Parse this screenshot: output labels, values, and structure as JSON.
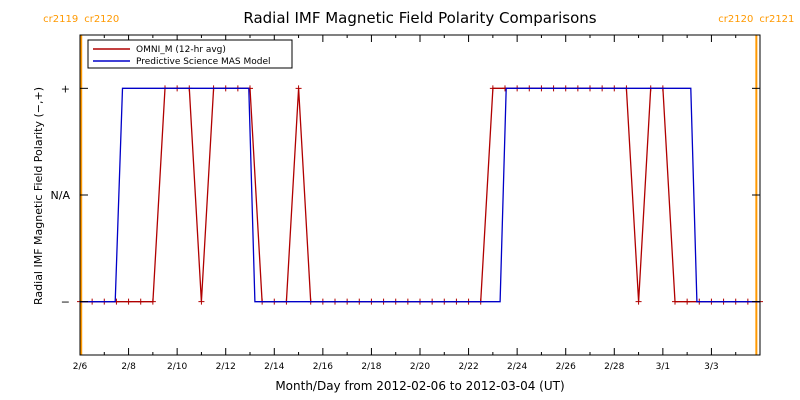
{
  "chart_data": {
    "type": "line",
    "title": "Radial IMF Magnetic Field Polarity Comparisons",
    "xlabel": "Month/Day from 2012-02-06 to 2012-03-04 (UT)",
    "ylabel": "Radial IMF Magnetic Field Polarity (−,+)",
    "x_start_date": "2012-02-06",
    "xlim": [
      0,
      28
    ],
    "ylim": [
      -1.5,
      1.5
    ],
    "x_ticks": [
      {
        "x": 0,
        "label": "2/6"
      },
      {
        "x": 2,
        "label": "2/8"
      },
      {
        "x": 4,
        "label": "2/10"
      },
      {
        "x": 6,
        "label": "2/12"
      },
      {
        "x": 8,
        "label": "2/14"
      },
      {
        "x": 10,
        "label": "2/16"
      },
      {
        "x": 12,
        "label": "2/18"
      },
      {
        "x": 14,
        "label": "2/20"
      },
      {
        "x": 16,
        "label": "2/22"
      },
      {
        "x": 18,
        "label": "2/24"
      },
      {
        "x": 20,
        "label": "2/26"
      },
      {
        "x": 22,
        "label": "2/28"
      },
      {
        "x": 24,
        "label": "3/1"
      },
      {
        "x": 26,
        "label": "3/3"
      }
    ],
    "y_ticks": [
      {
        "y": 1,
        "label": "+"
      },
      {
        "y": 0,
        "label": "N/A"
      },
      {
        "y": -1,
        "label": "−"
      }
    ],
    "carrington_markers": [
      {
        "x": 0.05,
        "labels": [
          "cr2119",
          "cr2120"
        ],
        "color": "#ff9900"
      },
      {
        "x": 27.85,
        "labels": [
          "cr2120",
          "cr2121"
        ],
        "color": "#ff9900"
      }
    ],
    "legend_position": "top-left",
    "series": [
      {
        "name": "OMNI_M (12-hr avg)",
        "color": "#b00000",
        "marker": "+",
        "points": [
          [
            0.0,
            -1
          ],
          [
            0.5,
            -1
          ],
          [
            1.0,
            -1
          ],
          [
            1.5,
            -1
          ],
          [
            2.0,
            -1
          ],
          [
            2.5,
            -1
          ],
          [
            3.0,
            -1
          ],
          [
            3.5,
            1
          ],
          [
            4.0,
            1
          ],
          [
            4.5,
            1
          ],
          [
            5.0,
            -1
          ],
          [
            5.5,
            1
          ],
          [
            6.0,
            1
          ],
          [
            6.5,
            1
          ],
          [
            7.0,
            1
          ],
          [
            7.5,
            -1
          ],
          [
            8.0,
            -1
          ],
          [
            8.5,
            -1
          ],
          [
            9.0,
            1
          ],
          [
            9.5,
            -1
          ],
          [
            10.0,
            -1
          ],
          [
            10.5,
            -1
          ],
          [
            11.0,
            -1
          ],
          [
            11.5,
            -1
          ],
          [
            12.0,
            -1
          ],
          [
            12.5,
            -1
          ],
          [
            13.0,
            -1
          ],
          [
            13.5,
            -1
          ],
          [
            14.0,
            -1
          ],
          [
            14.5,
            -1
          ],
          [
            15.0,
            -1
          ],
          [
            15.5,
            -1
          ],
          [
            16.0,
            -1
          ],
          [
            16.5,
            -1
          ],
          [
            17.0,
            1
          ],
          [
            17.5,
            1
          ],
          [
            18.0,
            1
          ],
          [
            18.5,
            1
          ],
          [
            19.0,
            1
          ],
          [
            19.5,
            1
          ],
          [
            20.0,
            1
          ],
          [
            20.5,
            1
          ],
          [
            21.0,
            1
          ],
          [
            21.5,
            1
          ],
          [
            22.0,
            1
          ],
          [
            22.5,
            1
          ],
          [
            23.0,
            -1
          ],
          [
            23.5,
            1
          ],
          [
            24.0,
            1
          ],
          [
            24.5,
            -1
          ],
          [
            25.0,
            -1
          ],
          [
            25.5,
            -1
          ],
          [
            26.0,
            -1
          ],
          [
            26.5,
            -1
          ],
          [
            27.0,
            -1
          ],
          [
            27.5,
            -1
          ],
          [
            28.0,
            -1
          ]
        ]
      },
      {
        "name": "Predictive Science MAS Model",
        "color": "#0000c8",
        "marker": "none",
        "points": [
          [
            0,
            -1
          ],
          [
            1.45,
            -1
          ],
          [
            1.75,
            1
          ],
          [
            6.95,
            1
          ],
          [
            7.2,
            -1
          ],
          [
            17.3,
            -1
          ],
          [
            17.55,
            1
          ],
          [
            25.15,
            1
          ],
          [
            25.4,
            -1
          ],
          [
            28,
            -1
          ]
        ]
      }
    ]
  }
}
